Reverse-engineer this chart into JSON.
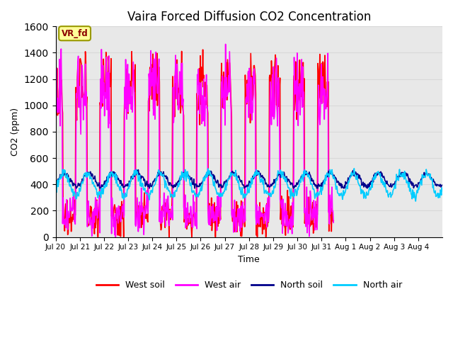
{
  "title": "Vaira Forced Diffusion CO2 Concentration",
  "xlabel": "Time",
  "ylabel": "CO2 (ppm)",
  "ylim": [
    0,
    1600
  ],
  "yticks": [
    0,
    200,
    400,
    600,
    800,
    1000,
    1200,
    1400,
    1600
  ],
  "legend_label": "VR_fd",
  "legend_bbox_color": "#ffff99",
  "legend_border_color": "#999900",
  "series_colors": {
    "West soil": "#ff0000",
    "West air": "#ff00ff",
    "North soil": "#00008b",
    "North air": "#00ccff"
  },
  "grid_color": "#d8d8d8",
  "bg_color": "#e8e8e8",
  "n_days": 16,
  "xtick_labels": [
    "Jul 20",
    "Jul 21",
    "Jul 22",
    "Jul 23",
    "Jul 24",
    "Jul 25",
    "Jul 26",
    "Jul 27",
    "Jul 28",
    "Jul 29",
    "Jul 30",
    "Jul 31",
    "Aug 1",
    "Aug 2",
    "Aug 3",
    "Aug 4"
  ],
  "seed": 42
}
